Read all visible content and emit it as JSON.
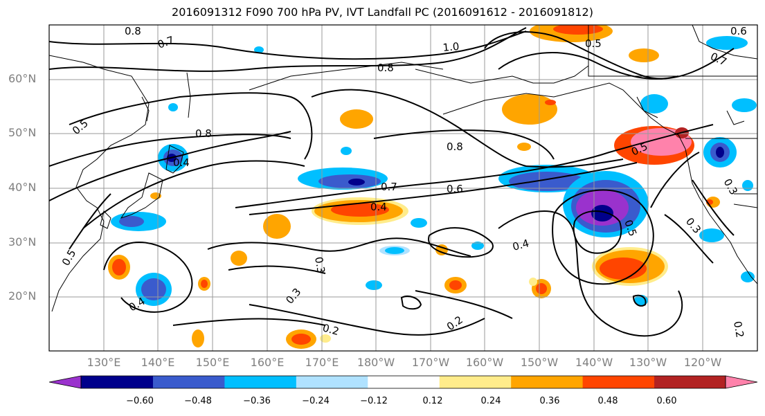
{
  "title": "2016091312 F090 700 hPa PV, IVT Landfall PC (2016091612 - 2016091812)",
  "lat_labels": [
    "60°N",
    "50°N",
    "40°N",
    "30°N",
    "20°N"
  ],
  "lon_labels": [
    "130°E",
    "140°E",
    "150°E",
    "160°E",
    "170°E",
    "180°W",
    "170°W",
    "160°W",
    "150°W",
    "140°W",
    "130°W",
    "120°W"
  ],
  "contour_labels": [
    "0.8",
    "0.7",
    "1.0",
    "0.8",
    "0.5",
    "0.4",
    "0.7",
    "0.5",
    "0.8",
    "0.8",
    "0.5",
    "0.7",
    "0.6",
    "0.4",
    "0.5",
    "0.4",
    "0.3",
    "0.5",
    "0.3",
    "0.4",
    "0.3",
    "0.2",
    "0.2",
    "0.2",
    "0.3",
    "0.6"
  ],
  "colorbar": {
    "colors": [
      "#9a32cd",
      "#00008b",
      "#3a5bcd",
      "#00bfff",
      "#b0e2ff",
      "#ffffff",
      "#ffec8b",
      "#ffa500",
      "#ff4500",
      "#b22222",
      "#ff82ab"
    ],
    "ticks": [
      "−0.60",
      "−0.48",
      "−0.36",
      "−0.24",
      "−0.12",
      "0.12",
      "0.24",
      "0.36",
      "0.48",
      "0.60"
    ]
  }
}
